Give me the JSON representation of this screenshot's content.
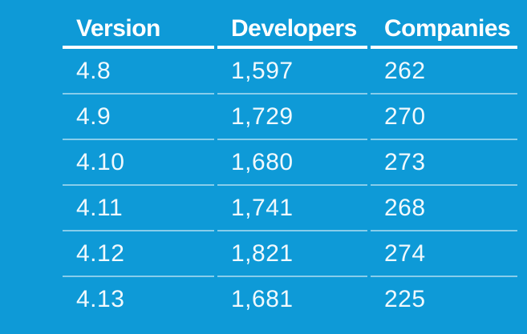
{
  "colors": {
    "background": "#0E9AD7",
    "header_text": "#FFFFFF",
    "data_text": "#FFFFFF",
    "header_rule": "#FFFFFF",
    "row_separator": "rgba(255,255,255,0.5)"
  },
  "table": {
    "columns": [
      "Version",
      "Developers",
      "Companies"
    ],
    "rows": [
      [
        "4.8",
        "1,597",
        "262"
      ],
      [
        "4.9",
        "1,729",
        "270"
      ],
      [
        "4.10",
        "1,680",
        "273"
      ],
      [
        "4.11",
        "1,741",
        "268"
      ],
      [
        "4.12",
        "1,821",
        "274"
      ],
      [
        "4.13",
        "1,681",
        "225"
      ]
    ]
  },
  "chart_data": {
    "type": "table",
    "columns": [
      "Version",
      "Developers",
      "Companies"
    ],
    "rows": [
      [
        "4.8",
        1597,
        262
      ],
      [
        "4.9",
        1729,
        270
      ],
      [
        "4.10",
        1680,
        273
      ],
      [
        "4.11",
        1741,
        268
      ],
      [
        "4.12",
        1821,
        274
      ],
      [
        "4.13",
        1681,
        225
      ]
    ],
    "layout_hints": {
      "header_rule": "thick solid white under header",
      "row_separators": "thin semi-transparent white lines with gaps at column boundaries",
      "background": "solid azure blue",
      "text_alignment": "left"
    }
  }
}
